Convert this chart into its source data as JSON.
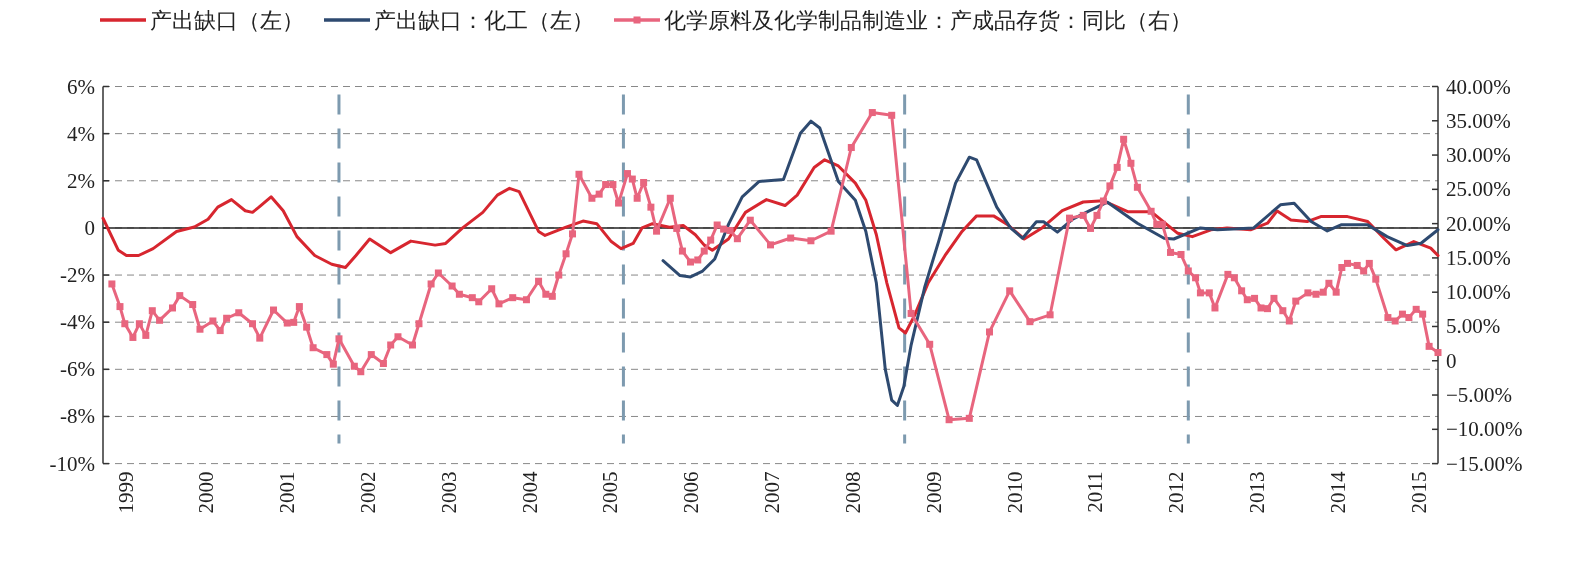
{
  "chart_data": {
    "type": "line",
    "xlim": [
      1999.22,
      2015.74
    ],
    "xticks": [
      {
        "value": 1999.5,
        "label": "1999"
      },
      {
        "value": 2000.5,
        "label": "2000"
      },
      {
        "value": 2001.5,
        "label": "2001"
      },
      {
        "value": 2002.5,
        "label": "2002"
      },
      {
        "value": 2003.5,
        "label": "2003"
      },
      {
        "value": 2004.5,
        "label": "2004"
      },
      {
        "value": 2005.5,
        "label": "2005"
      },
      {
        "value": 2006.5,
        "label": "2006"
      },
      {
        "value": 2007.5,
        "label": "2007"
      },
      {
        "value": 2008.5,
        "label": "2008"
      },
      {
        "value": 2009.5,
        "label": "2009"
      },
      {
        "value": 2010.5,
        "label": "2010"
      },
      {
        "value": 2011.5,
        "label": "2011"
      },
      {
        "value": 2012.5,
        "label": "2012"
      },
      {
        "value": 2013.5,
        "label": "2013"
      },
      {
        "value": 2014.5,
        "label": "2014"
      },
      {
        "value": 2015.5,
        "label": "2015"
      }
    ],
    "ylim": [
      -10,
      6
    ],
    "yticks": [
      {
        "value": 6,
        "label": "6%"
      },
      {
        "value": 4,
        "label": "4%"
      },
      {
        "value": 2,
        "label": "2%"
      },
      0,
      {
        "value": -2,
        "label": "-2%"
      },
      {
        "value": -4,
        "label": "-4%"
      },
      {
        "value": -6,
        "label": "-6%"
      },
      {
        "value": -8,
        "label": "-8%"
      },
      {
        "value": -10,
        "label": "-10%"
      }
    ],
    "y2lim": [
      -15,
      40
    ],
    "y2ticks": [
      {
        "value": 40,
        "label": "40.00%"
      },
      {
        "value": 35,
        "label": "35.00%"
      },
      {
        "value": 30,
        "label": "30.00%"
      },
      {
        "value": 25,
        "label": "25.00%"
      },
      {
        "value": 20,
        "label": "20.00%"
      },
      {
        "value": 15,
        "label": "15.00%"
      },
      {
        "value": 10,
        "label": "10.00%"
      },
      {
        "value": 5,
        "label": "5.00%"
      },
      0,
      {
        "value": -5,
        "label": "−5.00%"
      },
      {
        "value": -10,
        "label": "−10.00%"
      },
      {
        "value": -15,
        "label": "−15.00%"
      }
    ],
    "grid": "y",
    "legend": "top",
    "ref_lines": [
      {
        "axis": "y",
        "value": 0,
        "color": "#222222",
        "line_style": "solid"
      },
      {
        "axis": "x",
        "value": 2002.14,
        "color": "#7d9aaf",
        "line_style": "dashed"
      },
      {
        "axis": "x",
        "value": 2005.66,
        "color": "#7d9aaf",
        "line_style": "dashed"
      },
      {
        "axis": "x",
        "value": 2009.14,
        "color": "#7d9aaf",
        "line_style": "dashed"
      },
      {
        "axis": "x",
        "value": 2012.65,
        "color": "#7d9aaf",
        "line_style": "dashed"
      }
    ],
    "series": [
      {
        "name": "产出缺口（左）",
        "color": "#d7262f",
        "marker": "none",
        "x": [
          1999.22,
          1999.41,
          1999.51,
          1999.66,
          1999.84,
          2000.13,
          2000.35,
          2000.52,
          2000.64,
          2000.81,
          2000.98,
          2001.07,
          2001.15,
          2001.3,
          2001.45,
          2001.62,
          2001.84,
          2002.05,
          2002.22,
          2002.35,
          2002.52,
          2002.78,
          2003.03,
          2003.33,
          2003.46,
          2003.67,
          2003.92,
          2004.1,
          2004.25,
          2004.37,
          2004.61,
          2004.69,
          2004.95,
          2005.16,
          2005.33,
          2005.51,
          2005.63,
          2005.78,
          2005.89,
          2006.02,
          2006.23,
          2006.4,
          2006.55,
          2006.66,
          2006.76,
          2006.96,
          2007.17,
          2007.43,
          2007.66,
          2007.81,
          2008.02,
          2008.15,
          2008.32,
          2008.53,
          2008.66,
          2008.79,
          2008.92,
          2009.07,
          2009.15,
          2009.26,
          2009.43,
          2009.64,
          2009.85,
          2010.03,
          2010.24,
          2010.41,
          2010.62,
          2010.84,
          2011.09,
          2011.35,
          2011.6,
          2011.9,
          2012.19,
          2012.39,
          2012.52,
          2012.7,
          2012.93,
          2013.13,
          2013.42,
          2013.63,
          2013.75,
          2013.92,
          2014.12,
          2014.29,
          2014.62,
          2014.87,
          2015.07,
          2015.22,
          2015.44,
          2015.65,
          2015.74
        ],
        "values": [
          0.41,
          -0.95,
          -1.17,
          -1.17,
          -0.88,
          -0.15,
          0.04,
          0.37,
          0.88,
          1.2,
          0.73,
          0.66,
          0.88,
          1.32,
          0.73,
          -0.37,
          -1.17,
          -1.54,
          -1.68,
          -1.17,
          -0.47,
          -1.05,
          -0.56,
          -0.73,
          -0.66,
          0,
          0.66,
          1.39,
          1.68,
          1.54,
          -0.15,
          -0.32,
          0.03,
          0.29,
          0.18,
          -0.58,
          -0.88,
          -0.66,
          0,
          0.18,
          0.03,
          0.1,
          -0.29,
          -0.73,
          -0.95,
          -0.47,
          0.66,
          1.2,
          0.95,
          1.39,
          2.56,
          2.89,
          2.63,
          1.9,
          1.17,
          -0.29,
          -2.34,
          -4.24,
          -4.46,
          -3.73,
          -2.34,
          -1.17,
          -0.15,
          0.51,
          0.51,
          0.15,
          -0.47,
          0,
          0.73,
          1.1,
          1.15,
          0.69,
          0.69,
          0.13,
          -0.23,
          -0.37,
          -0.08,
          0,
          -0.08,
          0.2,
          0.72,
          0.34,
          0.27,
          0.48,
          0.48,
          0.27,
          -0.44,
          -0.93,
          -0.58,
          -0.86,
          -1.17
        ]
      },
      {
        "name": "产出缺口：化工（左）",
        "color": "#2e4a70",
        "marker": "none",
        "x": [
          2006.15,
          2006.36,
          2006.49,
          2006.64,
          2006.79,
          2006.96,
          2007.13,
          2007.34,
          2007.64,
          2007.85,
          2007.98,
          2008.09,
          2008.32,
          2008.53,
          2008.66,
          2008.79,
          2008.9,
          2008.98,
          2009.05,
          2009.13,
          2009.22,
          2009.39,
          2009.56,
          2009.77,
          2009.94,
          2010.03,
          2010.28,
          2010.45,
          2010.6,
          2010.77,
          2010.86,
          2011.03,
          2011.22,
          2011.43,
          2011.65,
          2012.02,
          2012.35,
          2012.47,
          2012.8,
          2013.01,
          2013.46,
          2013.79,
          2013.96,
          2014.17,
          2014.37,
          2014.54,
          2014.87,
          2015.11,
          2015.36,
          2015.53,
          2015.74
        ],
        "values": [
          -1.39,
          -2.02,
          -2.08,
          -1.83,
          -1.32,
          0.15,
          1.32,
          1.97,
          2.05,
          4.02,
          4.53,
          4.24,
          1.97,
          1.17,
          -0.15,
          -2.34,
          -5.99,
          -7.31,
          -7.53,
          -6.73,
          -4.97,
          -2.49,
          -0.58,
          1.9,
          3.0,
          2.89,
          0.88,
          0,
          -0.44,
          0.26,
          0.26,
          -0.18,
          0.37,
          0.73,
          1.09,
          0.2,
          -0.44,
          -0.47,
          0,
          -0.08,
          0,
          0.98,
          1.05,
          0.27,
          -0.13,
          0.13,
          0.13,
          -0.37,
          -0.75,
          -0.65,
          -0.08
        ]
      },
      {
        "name": "化学原料及化学制品制造业：产成品存货：同比（右）",
        "color": "#e8657e",
        "marker": "square",
        "axis": "y2",
        "x": [
          1999.33,
          1999.43,
          1999.49,
          1999.59,
          1999.67,
          1999.75,
          1999.83,
          1999.92,
          2000.08,
          2000.17,
          2000.33,
          2000.42,
          2000.58,
          2000.67,
          2000.75,
          2000.9,
          2001.07,
          2001.16,
          2001.33,
          2001.5,
          2001.58,
          2001.65,
          2001.74,
          2001.82,
          2001.99,
          2002.07,
          2002.14,
          2002.33,
          2002.41,
          2002.54,
          2002.69,
          2002.78,
          2002.87,
          2003.05,
          2003.13,
          2003.28,
          2003.37,
          2003.54,
          2003.63,
          2003.79,
          2003.87,
          2004.03,
          2004.12,
          2004.29,
          2004.46,
          2004.61,
          2004.7,
          2004.78,
          2004.86,
          2004.95,
          2005.03,
          2005.11,
          2005.27,
          2005.36,
          2005.44,
          2005.53,
          2005.6,
          2005.71,
          2005.77,
          2005.83,
          2005.91,
          2006.0,
          2006.07,
          2006.24,
          2006.32,
          2006.39,
          2006.49,
          2006.58,
          2006.66,
          2006.74,
          2006.82,
          2006.9,
          2006.98,
          2007.07,
          2007.23,
          2007.48,
          2007.73,
          2007.98,
          2008.23,
          2008.48,
          2008.74,
          2008.98,
          2009.22,
          2009.45,
          2009.69,
          2009.94,
          2010.19,
          2010.44,
          2010.69,
          2010.94,
          2011.18,
          2011.35,
          2011.44,
          2011.52,
          2011.6,
          2011.68,
          2011.77,
          2011.85,
          2011.94,
          2012.02,
          2012.19,
          2012.26,
          2012.33,
          2012.43,
          2012.56,
          2012.65,
          2012.74,
          2012.8,
          2012.91,
          2012.98,
          2013.14,
          2013.22,
          2013.31,
          2013.38,
          2013.47,
          2013.55,
          2013.63,
          2013.71,
          2013.82,
          2013.9,
          2013.98,
          2014.13,
          2014.23,
          2014.32,
          2014.39,
          2014.48,
          2014.55,
          2014.62,
          2014.74,
          2014.82,
          2014.89,
          2014.97,
          2015.12,
          2015.21,
          2015.3,
          2015.38,
          2015.47,
          2015.55,
          2015.63,
          2015.74
        ],
        "values": [
          11.2,
          7.9,
          5.4,
          3.4,
          5.4,
          3.7,
          7.3,
          5.9,
          7.7,
          9.5,
          8.2,
          4.6,
          5.8,
          4.4,
          6.2,
          7.0,
          5.4,
          3.3,
          7.4,
          5.5,
          5.6,
          7.9,
          4.9,
          1.9,
          0.9,
          -0.5,
          3.2,
          -0.8,
          -1.6,
          0.9,
          -0.4,
          2.3,
          3.5,
          2.3,
          5.4,
          11.2,
          12.8,
          10.9,
          9.7,
          9.2,
          8.6,
          10.5,
          8.3,
          9.2,
          8.9,
          11.6,
          9.7,
          9.4,
          12.5,
          15.6,
          18.5,
          27.2,
          23.7,
          24.3,
          25.7,
          25.7,
          23.0,
          27.3,
          26.5,
          23.7,
          26.0,
          22.4,
          18.9,
          23.7,
          19.3,
          16.0,
          14.4,
          14.7,
          16.0,
          17.6,
          19.8,
          19.2,
          19.0,
          17.8,
          20.5,
          16.9,
          17.9,
          17.5,
          18.9,
          31.1,
          36.2,
          35.8,
          6.9,
          2.4,
          -8.6,
          -8.4,
          4.2,
          10.2,
          5.7,
          6.7,
          20.8,
          21.2,
          19.3,
          21.2,
          23.3,
          25.5,
          28.2,
          32.3,
          28.8,
          25.3,
          21.8,
          19.9,
          19.9,
          15.8,
          15.5,
          13.1,
          12.1,
          9.9,
          9.9,
          7.7,
          12.6,
          12.1,
          10.2,
          8.9,
          9.1,
          7.7,
          7.6,
          9.1,
          7.3,
          5.8,
          8.7,
          9.9,
          9.7,
          10.0,
          11.3,
          10.0,
          13.6,
          14.2,
          13.9,
          13.1,
          14.2,
          11.9,
          6.3,
          5.8,
          6.8,
          6.3,
          7.5,
          6.8,
          2.1,
          1.2
        ]
      }
    ]
  }
}
